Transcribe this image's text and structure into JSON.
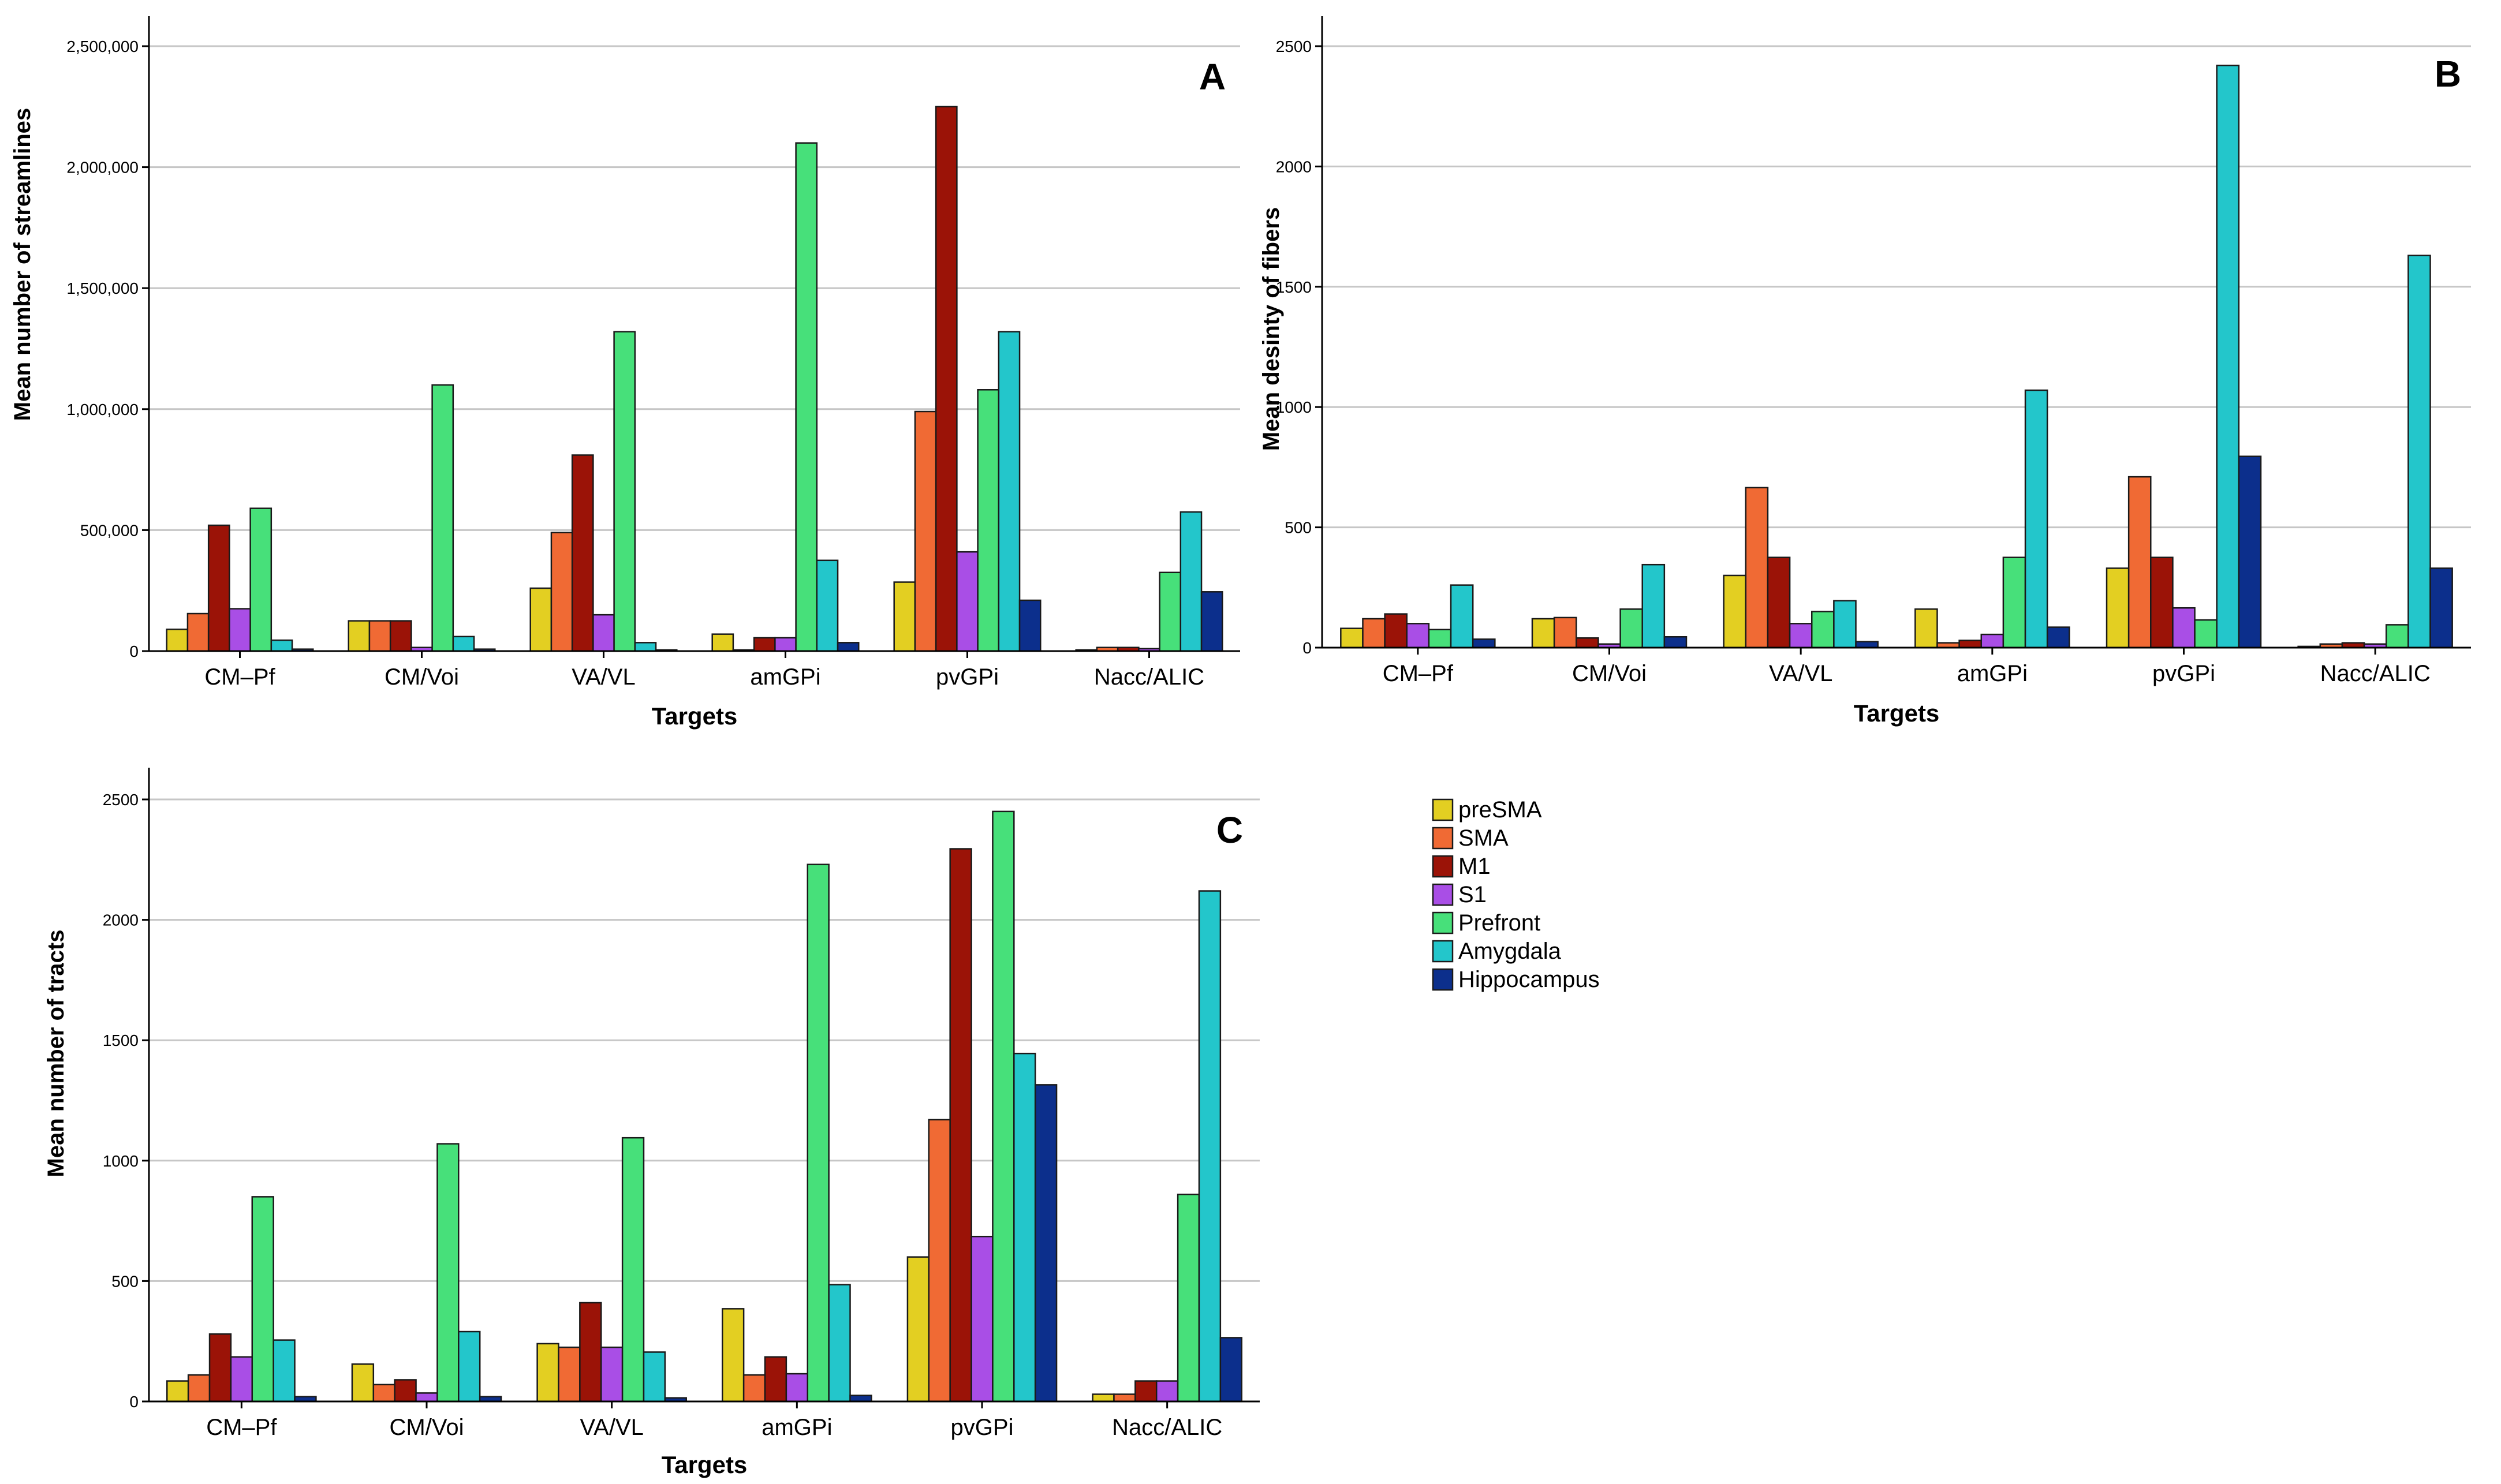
{
  "legend": {
    "entries": [
      "preSMA",
      "SMA",
      "M1",
      "S1",
      "Prefront",
      "Amygdala",
      "Hippocampus"
    ],
    "colors": [
      "#e3cf22",
      "#f06a34",
      "#9b1307",
      "#a94ee6",
      "#47e07a",
      "#23c6cb",
      "#0c2f8c"
    ]
  },
  "chart_data": [
    {
      "type": "bar",
      "label": "A",
      "xlabel": "Targets",
      "ylabel": "Mean number of streamlines",
      "categories": [
        "CM–Pf",
        "CM/Voi",
        "VA/VL",
        "amGPi",
        "pvGPi",
        "Nacc/ALIC"
      ],
      "ylim": [
        0,
        2500000
      ],
      "yticks": [
        0,
        500000,
        1000000,
        1500000,
        2000000,
        2500000
      ],
      "ytick_labels": [
        "0",
        "500,000",
        "1,000,000",
        "1,500,000",
        "2,000,000",
        "2,500,000"
      ],
      "series": [
        {
          "name": "preSMA",
          "values": [
            90000,
            125000,
            260000,
            70000,
            285000,
            5000
          ]
        },
        {
          "name": "SMA",
          "values": [
            155000,
            125000,
            490000,
            5000,
            990000,
            15000
          ]
        },
        {
          "name": "M1",
          "values": [
            520000,
            125000,
            810000,
            55000,
            2250000,
            15000
          ]
        },
        {
          "name": "S1",
          "values": [
            175000,
            15000,
            150000,
            55000,
            410000,
            10000
          ]
        },
        {
          "name": "Prefront",
          "values": [
            590000,
            1100000,
            1320000,
            2100000,
            1080000,
            325000
          ]
        },
        {
          "name": "Amygdala",
          "values": [
            45000,
            60000,
            35000,
            375000,
            1320000,
            575000
          ]
        },
        {
          "name": "Hippocampus",
          "values": [
            8000,
            8000,
            5000,
            35000,
            210000,
            245000
          ]
        }
      ]
    },
    {
      "type": "bar",
      "label": "B",
      "xlabel": "Targets",
      "ylabel": "Mean desinty of fibers",
      "categories": [
        "CM–Pf",
        "CM/Voi",
        "VA/VL",
        "amGPi",
        "pvGPi",
        "Nacc/ALIC"
      ],
      "ylim": [
        0,
        2500
      ],
      "yticks": [
        0,
        500,
        1000,
        1500,
        2000,
        2500
      ],
      "ytick_labels": [
        "0",
        "500",
        "1000",
        "1500",
        "2000",
        "2500"
      ],
      "series": [
        {
          "name": "preSMA",
          "values": [
            80,
            120,
            300,
            160,
            330,
            5
          ]
        },
        {
          "name": "SMA",
          "values": [
            120,
            125,
            665,
            20,
            710,
            15
          ]
        },
        {
          "name": "M1",
          "values": [
            140,
            40,
            375,
            30,
            375,
            20
          ]
        },
        {
          "name": "S1",
          "values": [
            100,
            15,
            100,
            55,
            165,
            15
          ]
        },
        {
          "name": "Prefront",
          "values": [
            75,
            160,
            150,
            375,
            115,
            95
          ]
        },
        {
          "name": "Amygdala",
          "values": [
            260,
            345,
            195,
            1070,
            2420,
            1630
          ]
        },
        {
          "name": "Hippocampus",
          "values": [
            35,
            45,
            25,
            85,
            795,
            330
          ]
        }
      ]
    },
    {
      "type": "bar",
      "label": "C",
      "xlabel": "Targets",
      "ylabel": "Mean number of tracts",
      "categories": [
        "CM–Pf",
        "CM/Voi",
        "VA/VL",
        "amGPi",
        "pvGPi",
        "Nacc/ALIC"
      ],
      "ylim": [
        0,
        2600
      ],
      "yticks": [
        0,
        500,
        1000,
        1500,
        2000,
        2500
      ],
      "ytick_labels": [
        "0",
        "500",
        "1000",
        "1500",
        "2000",
        "2500"
      ],
      "series": [
        {
          "name": "preSMA",
          "values": [
            85,
            155,
            240,
            385,
            600,
            30
          ]
        },
        {
          "name": "SMA",
          "values": [
            110,
            70,
            225,
            110,
            1170,
            30
          ]
        },
        {
          "name": "M1",
          "values": [
            280,
            90,
            410,
            185,
            2295,
            85
          ]
        },
        {
          "name": "S1",
          "values": [
            185,
            35,
            225,
            115,
            685,
            85
          ]
        },
        {
          "name": "Prefront",
          "values": [
            850,
            1070,
            1095,
            2230,
            2450,
            860
          ]
        },
        {
          "name": "Amygdala",
          "values": [
            255,
            290,
            205,
            485,
            1445,
            2120
          ]
        },
        {
          "name": "Hippocampus",
          "values": [
            20,
            20,
            15,
            25,
            1315,
            265
          ]
        }
      ]
    }
  ]
}
